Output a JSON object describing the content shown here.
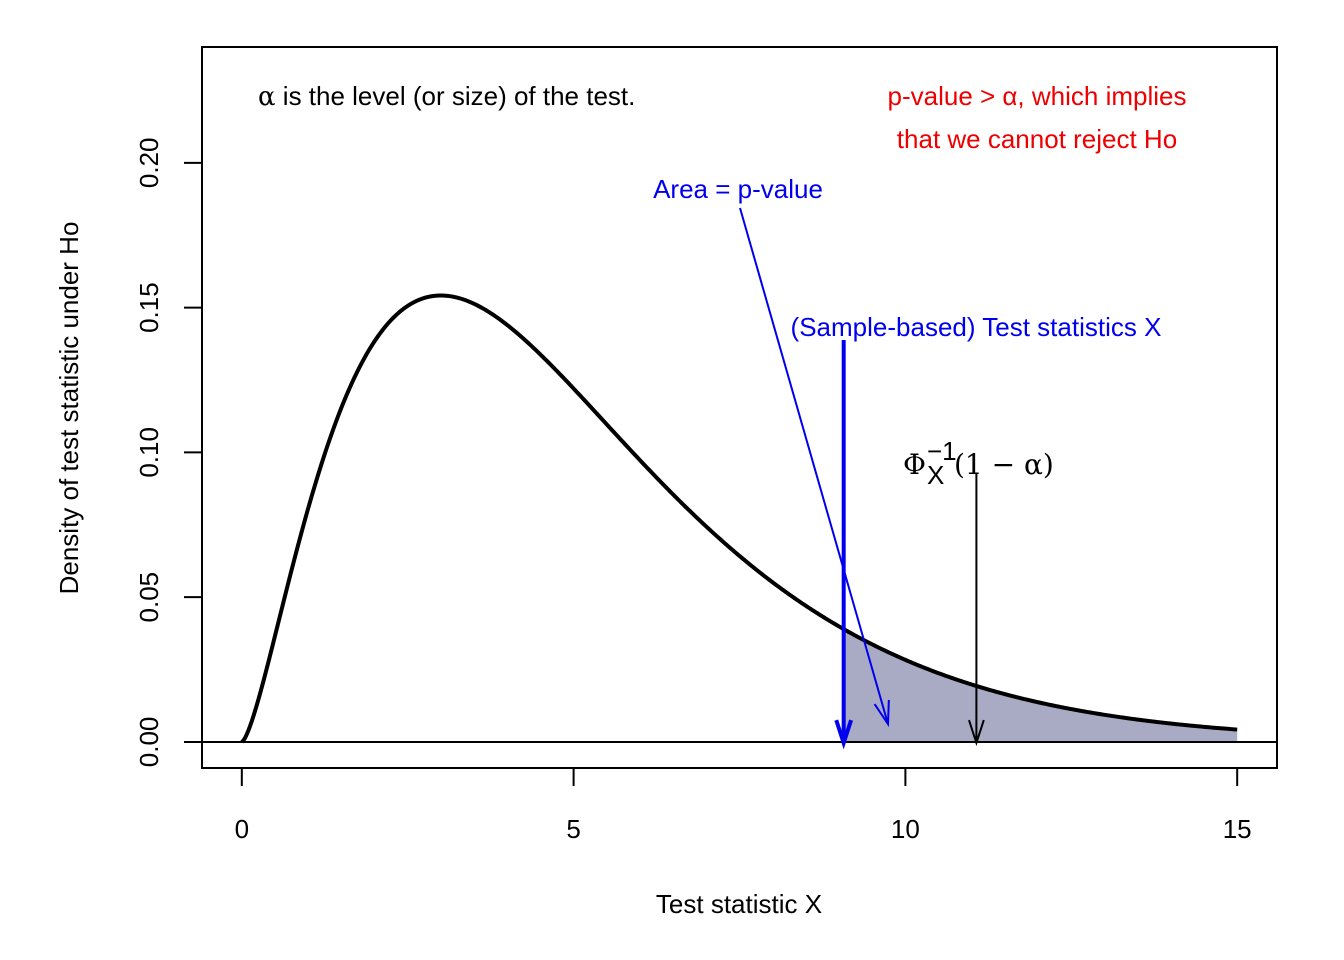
{
  "chart_data": {
    "type": "area",
    "xlabel": "Test statistic X",
    "ylabel": "Density of test statistic under Ho",
    "xlim": [
      -0.6,
      15.6
    ],
    "ylim": [
      -0.009,
      0.24
    ],
    "xticks": [
      0,
      5,
      10,
      15
    ],
    "xtick_labels": [
      "0",
      "5",
      "10",
      "15"
    ],
    "yticks": [
      0.0,
      0.05,
      0.1,
      0.15,
      0.2
    ],
    "ytick_labels": [
      "0.00",
      "0.05",
      "0.10",
      "0.15",
      "0.20"
    ],
    "grid": false,
    "series": [
      {
        "distribution": "chi-square",
        "df": 5,
        "x_range": [
          0,
          15
        ],
        "color": "#000000"
      }
    ],
    "shaded_region": {
      "x_from": 9.07,
      "x_to": 15,
      "color": "#a9aac3"
    },
    "test_statistic_x": 9.07,
    "critical_value_x": 11.07,
    "annotations": {
      "alpha_note_symbol": "α",
      "alpha_note": " is the level (or size) of the test.",
      "decision_line1": "p-value > α, which implies",
      "decision_line2": "that we cannot reject Ho",
      "area_label": "Area = p-value",
      "test_stat_label": "(Sample-based) Test statistics X",
      "critical_phi": "Φ",
      "critical_sub": "X",
      "critical_sup": "−1",
      "critical_arg": "(1 − α)"
    },
    "colors": {
      "blue": "#0000ee",
      "red": "#ee0000",
      "black": "#000000",
      "shade": "#a9aac3"
    }
  }
}
